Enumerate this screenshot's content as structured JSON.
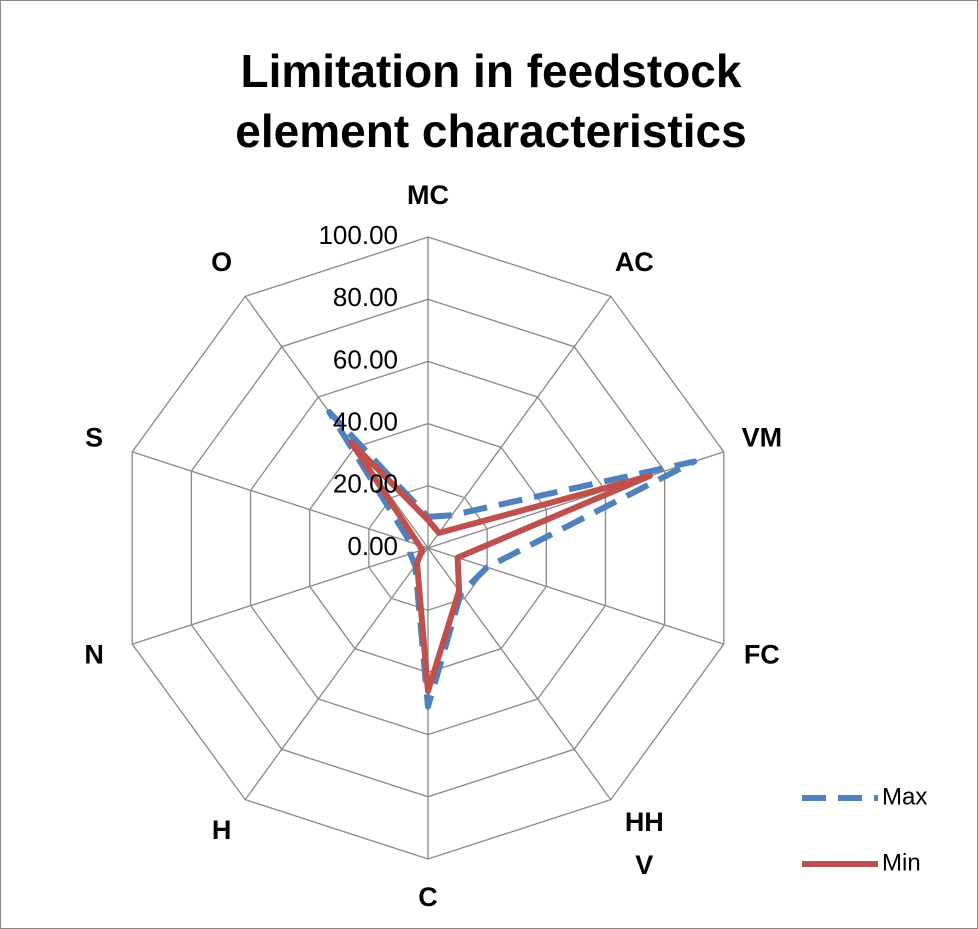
{
  "chart_data": {
    "type": "radar",
    "title": "Limitation in feedstock element characteristics",
    "categories": [
      "MC",
      "AC",
      "VM",
      "FC",
      "HHV",
      "C",
      "H",
      "N",
      "S",
      "O"
    ],
    "series": [
      {
        "name": "Max",
        "color": "#4f81bd",
        "dash": true,
        "values": [
          10,
          13,
          90,
          20,
          18,
          51,
          7,
          6,
          6,
          54
        ]
      },
      {
        "name": "Min",
        "color": "#c0504d",
        "dash": false,
        "values": [
          9,
          6,
          75,
          10,
          17,
          46,
          6,
          2,
          3,
          42
        ]
      }
    ],
    "ylim": [
      0,
      100
    ],
    "yticks": [
      {
        "value": 0,
        "label": "0.00"
      },
      {
        "value": 20,
        "label": "20.00"
      },
      {
        "value": 40,
        "label": "40.00"
      },
      {
        "value": 60,
        "label": "60.00"
      },
      {
        "value": 80,
        "label": "80.00"
      },
      {
        "value": 100,
        "label": "100.00"
      }
    ],
    "grid": true,
    "legend": "right"
  }
}
